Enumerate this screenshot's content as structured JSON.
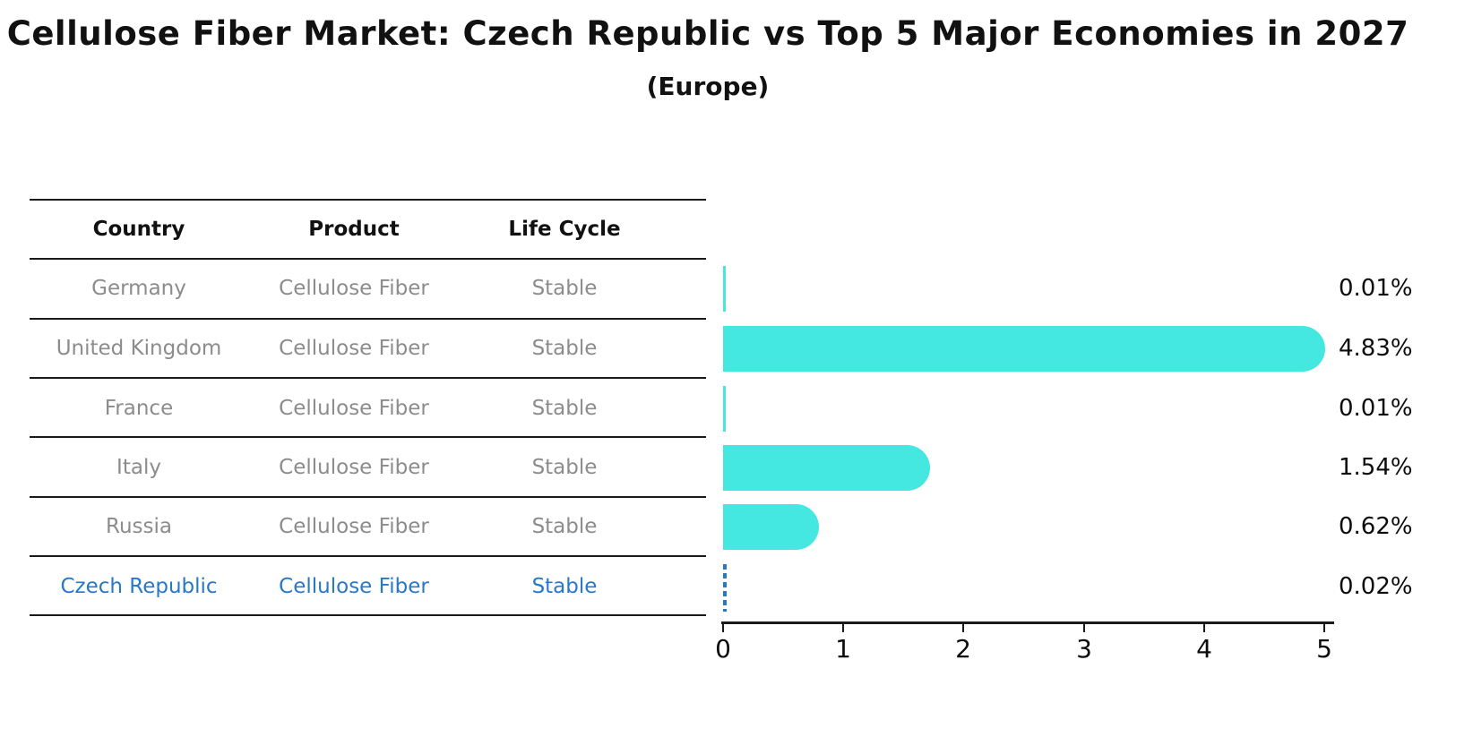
{
  "title": "Cellulose Fiber Market: Czech Republic vs Top 5 Major Economies in 2027",
  "subtitle": "(Europe)",
  "table": {
    "headers": [
      "Country",
      "Product",
      "Life Cycle"
    ],
    "rows": [
      {
        "country": "Germany",
        "product": "Cellulose Fiber",
        "life_cycle": "Stable"
      },
      {
        "country": "United Kingdom",
        "product": "Cellulose Fiber",
        "life_cycle": "Stable"
      },
      {
        "country": "France",
        "product": "Cellulose Fiber",
        "life_cycle": "Stable"
      },
      {
        "country": "Italy",
        "product": "Cellulose Fiber",
        "life_cycle": "Stable"
      },
      {
        "country": "Russia",
        "product": "Cellulose Fiber",
        "life_cycle": "Stable"
      },
      {
        "country": "Czech Republic",
        "product": "Cellulose Fiber",
        "life_cycle": "Stable"
      }
    ],
    "highlighted_row": "Czech Republic"
  },
  "chart_data": {
    "type": "bar",
    "orientation": "horizontal",
    "title": "Cellulose Fiber Market: Czech Republic vs Top 5 Major Economies in 2027 (Europe)",
    "categories": [
      "Germany",
      "United Kingdom",
      "France",
      "Italy",
      "Russia",
      "Czech Republic"
    ],
    "values": [
      0.01,
      4.83,
      0.01,
      1.54,
      0.62,
      0.02
    ],
    "value_labels": [
      "0.01%",
      "4.83%",
      "0.01%",
      "1.54%",
      "0.62%",
      "0.02%"
    ],
    "xlabel": "",
    "ylabel": "",
    "xlim": [
      0,
      5
    ],
    "x_ticks": [
      "0",
      "1",
      "2",
      "3",
      "4",
      "5"
    ],
    "grid": false,
    "legend": false,
    "bar_color": "#45e7e1",
    "highlight_index": 5,
    "highlight_color": "#2878c8"
  },
  "colors": {
    "bar": "#45e7e1",
    "highlight": "#2878c8",
    "muted_text": "#8c8c8c",
    "text": "#111111"
  }
}
